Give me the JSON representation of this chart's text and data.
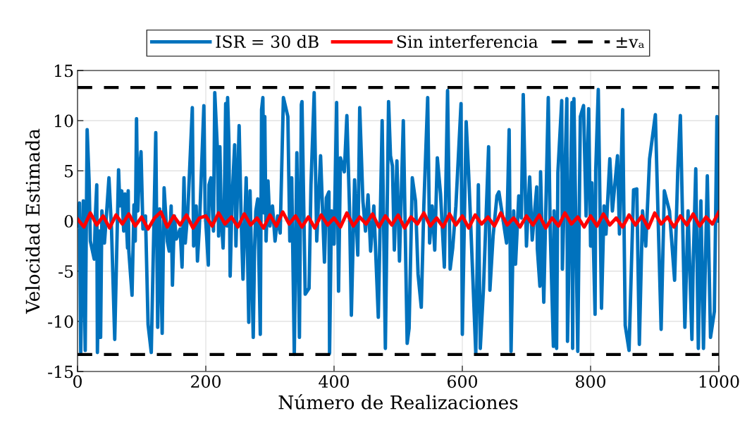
{
  "chart_data": {
    "type": "line",
    "xlabel": "Número de Realizaciones",
    "ylabel": "Velocidad Estimada",
    "xlim": [
      0,
      1000
    ],
    "xticks": [
      0,
      200,
      400,
      600,
      800,
      1000
    ],
    "ylim": [
      -15,
      15
    ],
    "yticks": [
      -15,
      -10,
      -5,
      0,
      5,
      10,
      15
    ],
    "grid": true,
    "legend": "top",
    "marker": "none",
    "line_style": "solid",
    "series": [
      {
        "name": "ISR = 30 dB",
        "color": "#0072bd",
        "x": [
          1,
          3,
          5,
          9,
          12,
          15,
          18,
          20,
          23,
          26,
          28,
          30,
          31,
          34,
          36,
          38,
          42,
          45,
          49,
          53,
          58,
          64,
          66,
          69,
          72,
          74,
          78,
          79,
          80,
          85,
          88,
          90,
          92,
          94,
          96,
          99,
          102,
          106,
          110,
          115,
          122,
          125,
          128,
          132,
          135,
          140,
          143,
          146,
          148,
          151,
          154,
          160,
          163,
          166,
          168,
          172,
          179,
          181,
          185,
          187,
          190,
          197,
          199,
          204,
          205,
          208,
          212,
          214,
          218,
          220,
          222,
          224,
          227,
          229,
          231,
          233,
          234,
          236,
          238,
          241,
          245,
          247,
          252,
          255,
          258,
          263,
          267,
          269,
          274,
          276,
          278,
          281,
          285,
          287,
          289,
          291,
          292,
          294,
          297,
          300,
          304,
          308,
          312,
          316,
          321,
          328,
          331,
          334,
          338,
          342,
          346,
          349,
          350,
          355,
          361,
          364,
          369,
          373,
          379,
          385,
          388,
          392,
          393,
          396,
          400,
          404,
          407,
          410,
          416,
          420,
          424,
          427,
          432,
          437,
          440,
          445,
          449,
          453,
          457,
          462,
          469,
          475,
          480,
          485,
          488,
          491,
          494,
          498,
          502,
          508,
          514,
          517,
          522,
          527,
          531,
          536,
          540,
          546,
          549,
          553,
          557,
          561,
          566,
          572,
          577,
          581,
          585,
          590,
          598,
          600,
          606,
          610,
          614,
          621,
          625,
          628,
          633,
          641,
          643,
          648,
          654,
          657,
          669,
          673,
          676,
          680,
          683,
          688,
          692,
          695,
          700,
          705,
          709,
          716,
          717,
          721,
          722,
          727,
          734,
          737,
          742,
          743,
          747,
          749,
          755,
          756,
          763,
          764,
          771,
          772,
          774,
          780,
          784,
          789,
          793,
          797,
          800,
          802,
          807,
          808,
          812,
          817,
          821,
          824,
          830,
          834,
          842,
          845,
          850,
          854,
          860,
          867,
          872,
          876,
          881,
          886,
          892,
          901,
          905,
          910,
          915,
          923,
          931,
          936,
          940,
          947,
          952,
          958,
          960,
          964,
          968,
          972,
          976,
          982,
          987,
          993,
          997,
          1000
        ],
        "values": [
          -0.5,
          1.8,
          -13.1,
          2.0,
          -12.9,
          9.1,
          4.1,
          -2.0,
          -2.9,
          -3.8,
          0.8,
          3.6,
          -13.1,
          -1.0,
          -11.6,
          1.0,
          -2.2,
          0.5,
          4.3,
          -0.8,
          -11.8,
          5.1,
          1.5,
          3.0,
          -1.0,
          2.7,
          -2.7,
          3.0,
          -3.0,
          -7.4,
          1.6,
          -2.0,
          10.2,
          1.0,
          4.3,
          6.9,
          -0.8,
          0.5,
          -10.3,
          -13.1,
          8.8,
          -10.6,
          1.2,
          -11.2,
          3.3,
          -2.0,
          -3.0,
          1.5,
          -6.4,
          0.5,
          -1.8,
          -0.8,
          -4.6,
          4.3,
          -2.2,
          1.0,
          11.3,
          -2.5,
          1.5,
          -4.0,
          -0.6,
          11.5,
          1.0,
          -4.4,
          3.6,
          4.3,
          -1.0,
          12.8,
          7.3,
          -1.5,
          7.4,
          0.5,
          -2.7,
          2.3,
          11.7,
          -0.5,
          12.3,
          8.0,
          -5.5,
          2.2,
          7.6,
          -2.5,
          9.5,
          0.5,
          -5.8,
          4.3,
          -10.1,
          3.0,
          -11.6,
          -3.0,
          1.0,
          2.2,
          -11.3,
          11.1,
          12.3,
          0.8,
          10.4,
          -2.0,
          4.0,
          -0.5,
          1.5,
          -2.0,
          0.5,
          -1.2,
          12.3,
          10.4,
          -2.0,
          4.3,
          -13.3,
          6.8,
          -11.6,
          11.6,
          11.9,
          -7.3,
          -6.7,
          3.6,
          12.8,
          -2.0,
          6.5,
          -4.1,
          2.3,
          2.9,
          -13.2,
          1.0,
          -2.3,
          11.8,
          -7.0,
          6.3,
          4.9,
          10.5,
          1.5,
          -9.4,
          4.1,
          -3.4,
          11.3,
          2.0,
          -1.0,
          2.6,
          -3.0,
          1.5,
          -9.6,
          10.0,
          -12.7,
          11.9,
          6.5,
          5.5,
          -2.9,
          6.0,
          -4.0,
          10.0,
          -12.2,
          -10.7,
          4.3,
          2.0,
          -5.3,
          -8.6,
          1.5,
          12.3,
          -2.2,
          1.5,
          -2.9,
          6.3,
          2.7,
          -4.6,
          13.0,
          -4.8,
          -2.7,
          1.5,
          11.7,
          -11.3,
          9.9,
          4.5,
          -1.8,
          -13.2,
          3.6,
          -12.7,
          -6.7,
          7.4,
          -6.9,
          -1.5,
          2.5,
          2.9,
          -2.2,
          9.1,
          -13.0,
          1.0,
          -4.3,
          2.5,
          0.3,
          12.6,
          -2.5,
          4.4,
          -1.9,
          3.4,
          -2.8,
          -6.5,
          4.9,
          -8.1,
          12.3,
          -0.8,
          -12.5,
          1.0,
          -12.7,
          4.8,
          12.0,
          -4.8,
          12.2,
          -12.0,
          11.8,
          -12.7,
          12.2,
          -13.0,
          10.4,
          11.5,
          0.5,
          11.2,
          -2.5,
          3.8,
          -9.3,
          5.0,
          13.1,
          -8.7,
          1.5,
          -1.3,
          6.2,
          1.0,
          6.5,
          -1.3,
          11.1,
          -10.4,
          -12.9,
          3.1,
          3.2,
          -12.3,
          1.0,
          -2.5,
          6.2,
          10.6,
          1.0,
          -10.8,
          3.0,
          1.0,
          -5.9,
          5.1,
          10.5,
          -10.6,
          1.0,
          -11.8,
          -4.3,
          5.2,
          -12.7,
          2.0,
          -12.7,
          4.5,
          -11.6,
          -9.0,
          10.4,
          0.0
        ]
      },
      {
        "name": "Sin interferencia",
        "color": "#ff0000",
        "x": [
          0,
          10,
          20,
          30,
          40,
          50,
          60,
          70,
          80,
          90,
          100,
          110,
          120,
          130,
          140,
          150,
          160,
          170,
          180,
          190,
          200,
          210,
          220,
          230,
          240,
          250,
          260,
          270,
          280,
          290,
          300,
          310,
          320,
          330,
          340,
          350,
          360,
          370,
          380,
          390,
          400,
          410,
          420,
          430,
          440,
          450,
          460,
          470,
          480,
          490,
          500,
          510,
          520,
          530,
          540,
          550,
          560,
          570,
          580,
          590,
          600,
          610,
          620,
          630,
          640,
          650,
          660,
          670,
          680,
          690,
          700,
          710,
          720,
          730,
          740,
          750,
          760,
          770,
          780,
          790,
          800,
          810,
          820,
          830,
          840,
          850,
          860,
          870,
          880,
          890,
          900,
          910,
          920,
          930,
          940,
          950,
          960,
          970,
          980,
          990,
          1000
        ],
        "values": [
          0.2,
          -0.6,
          0.8,
          -0.4,
          0.5,
          -0.7,
          0.6,
          -0.3,
          0.7,
          -0.5,
          0.4,
          -0.8,
          0.3,
          0.9,
          -0.6,
          0.5,
          -0.4,
          0.6,
          -0.7,
          0.3,
          0.5,
          -0.5,
          0.8,
          -0.3,
          0.4,
          -0.6,
          0.7,
          -0.4,
          0.3,
          -0.7,
          0.6,
          -0.5,
          0.9,
          -0.3,
          0.5,
          -0.6,
          0.4,
          -0.7,
          0.6,
          -0.4,
          0.3,
          -0.6,
          0.8,
          -0.5,
          0.4,
          -0.3,
          0.7,
          -0.6,
          0.5,
          -0.4,
          0.6,
          -0.7,
          0.4,
          -0.3,
          0.8,
          -0.5,
          0.3,
          -0.6,
          0.7,
          -0.4,
          0.5,
          -0.7,
          0.6,
          -0.3,
          0.4,
          -0.5,
          0.8,
          -0.4,
          0.3,
          -0.6,
          0.5,
          -0.4,
          0.6,
          -0.7,
          0.3,
          -0.5,
          0.8,
          -0.3,
          0.4,
          -0.6,
          0.5,
          -0.5,
          0.7,
          -0.4,
          0.3,
          -0.6,
          0.6,
          -0.4,
          0.5,
          -0.7,
          0.8,
          -0.3,
          0.4,
          -0.6,
          0.5,
          -0.4,
          0.7,
          -0.5,
          0.4,
          -0.3,
          0.9
        ]
      }
    ],
    "ref_lines": [
      {
        "axis": "y",
        "value": 13.3,
        "label": "±vₐ",
        "color": "#000000",
        "line_style": "dashed"
      },
      {
        "axis": "y",
        "value": -13.3,
        "color": "#000000",
        "line_style": "dashed"
      }
    ]
  }
}
